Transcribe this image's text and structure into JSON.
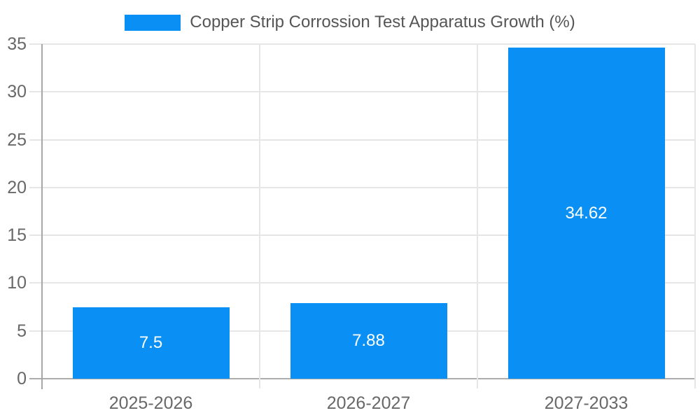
{
  "legend": {
    "label": "Copper Strip Corrossion Test Apparatus Growth (%)"
  },
  "chart_data": {
    "type": "bar",
    "categories": [
      "2025-2026",
      "2026-2027",
      "2027-2033"
    ],
    "values": [
      7.5,
      7.88,
      34.62
    ],
    "value_labels": [
      "7.5",
      "7.88",
      "34.62"
    ],
    "series": [
      {
        "name": "Copper Strip Corrossion Test Apparatus Growth (%)",
        "values": [
          7.5,
          7.88,
          34.62
        ]
      }
    ],
    "title": "Copper Strip Corrossion Test Apparatus Growth (%)",
    "xlabel": "",
    "ylabel": "",
    "ylim": [
      0,
      35
    ],
    "ytick_step": 5,
    "ytick_labels": [
      "0",
      "5",
      "10",
      "15",
      "20",
      "25",
      "30",
      "35"
    ],
    "grid": true,
    "legend_position": "top-center"
  },
  "colors": {
    "bar": "#0A90F4",
    "bar_label_text": "#FFFFFF",
    "gridline": "#E6E6E6",
    "baseline": "#ADADAD",
    "axis_line": "#A6A6A6",
    "tick_text": "#686868",
    "legend_text": "#565656",
    "background": "#FFFFFF"
  }
}
